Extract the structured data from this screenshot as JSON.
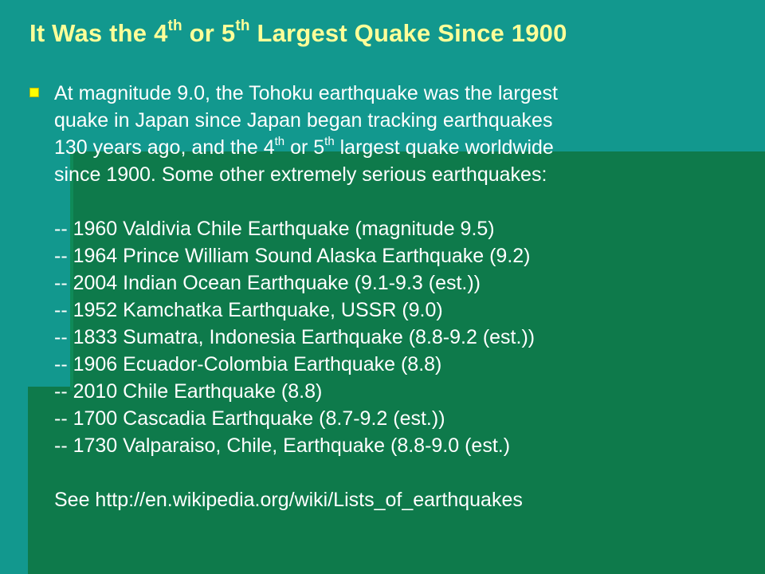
{
  "title": {
    "prefix": "It Was the 4",
    "sup1": "th",
    "middle": " or 5",
    "sup2": "th",
    "suffix": " Largest Quake Since 1900"
  },
  "intro": {
    "line1": "At magnitude 9.0, the Tohoku earthquake was the largest",
    "line2": "quake in Japan since Japan began tracking earthquakes",
    "line3_a": "130 years ago, and the 4",
    "line3_sup1": "th",
    "line3_b": " or 5",
    "line3_sup2": "th",
    "line3_c": " largest quake worldwide",
    "line4": "since 1900. Some other extremely serious earthquakes:"
  },
  "earthquakes": [
    "-- 1960 Valdivia Chile Earthquake (magnitude 9.5)",
    "-- 1964 Prince William Sound Alaska Earthquake (9.2)",
    "-- 2004 Indian Ocean Earthquake (9.1-9.3 (est.))",
    "-- 1952 Kamchatka Earthquake, USSR (9.0)",
    "-- 1833 Sumatra, Indonesia Earthquake (8.8-9.2 (est.))",
    "-- 1906 Ecuador-Colombia Earthquake (8.8)",
    "-- 2010 Chile Earthquake (8.8)",
    "-- 1700 Cascadia Earthquake (8.7-9.2 (est.))",
    "-- 1730 Valparaiso, Chile, Earthquake (8.8-9.0 (est.)"
  ],
  "see_also": "See http://en.wikipedia.org/wiki/Lists_of_earthquakes",
  "colors": {
    "background": "#12988e",
    "accent_block": "#0e7a4b",
    "title": "#ffff99",
    "body_text": "#ffffff",
    "bullet": "#ffff00"
  }
}
